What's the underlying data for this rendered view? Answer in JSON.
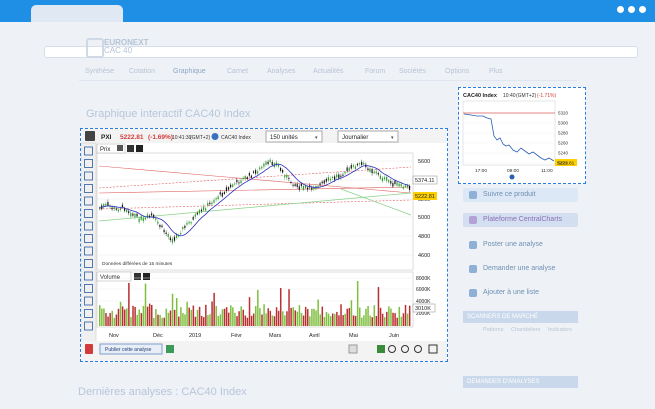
{
  "brand": {
    "line1": "EURONEXT",
    "line2": "CAC 40"
  },
  "page": {
    "section_title": "Graphique interactif CAC40 Index",
    "bottom_title": "Dernières analyses : CAC40 Index"
  },
  "tabs": [
    "Synthèse",
    "Cotation",
    "Graphique",
    "Carnet",
    "Analyses",
    "Actualités",
    "Forum",
    "Sociétés",
    "Options",
    "Plus"
  ],
  "chart": {
    "ticker": "PXI",
    "price": "5222.81",
    "change": "(-1.69%)",
    "time": "10:41:30",
    "timezone": "(GMT+2)",
    "index_name": "CAC40 Index",
    "units_select": "150 unités",
    "period_select": "Journalier",
    "panel_price": "Prix",
    "panel_volume": "Volume",
    "note": "Données différées de 15 minutes",
    "publish_button": "Publier cette analyse",
    "y_ticks": [
      "5600",
      "5400",
      "5200",
      "5000",
      "4800",
      "4600"
    ],
    "vol_ticks": [
      "8000K",
      "6000K",
      "4000K",
      "2000K"
    ],
    "price_label": "5374.11",
    "last_label": "5222.81",
    "vol_label": "3010K",
    "x_ticks": [
      "Nov",
      "Déc",
      "2019",
      "Févr",
      "Mars",
      "Avril",
      "Mai",
      "Juin"
    ],
    "colors": {
      "up": "#2e9a2e",
      "down": "#111111",
      "vol_up": "#7fbf3f",
      "vol_down": "#b83030",
      "ma": "#2b2bbf",
      "trend_red": "#e06060",
      "trend_green": "#88d088",
      "accent_red": "#d23b3b"
    }
  },
  "mini_chart": {
    "title": "CAC40 Index",
    "time": "10:40",
    "timezone": "(GMT+2)",
    "change": "(-1.71%)",
    "price_label": "5221.81",
    "y_ticks": [
      "5320",
      "5300",
      "5280",
      "5260",
      "5240",
      "5220"
    ],
    "x_ticks": [
      "17:00",
      "09:00",
      "11:00"
    ]
  },
  "sidebar": {
    "buttons": [
      "Suivre ce produit",
      "Plateforme CentralCharts",
      "Poster une analyse",
      "Demander une analyse",
      "Ajouter à une liste"
    ],
    "scanners_head": "SCANNERS DE MARCHÉ",
    "scanners_tabs": [
      "Patterns",
      "Chandeliers",
      "Indicators"
    ],
    "demandes_head": "DEMANDES D'ANALYSES"
  }
}
